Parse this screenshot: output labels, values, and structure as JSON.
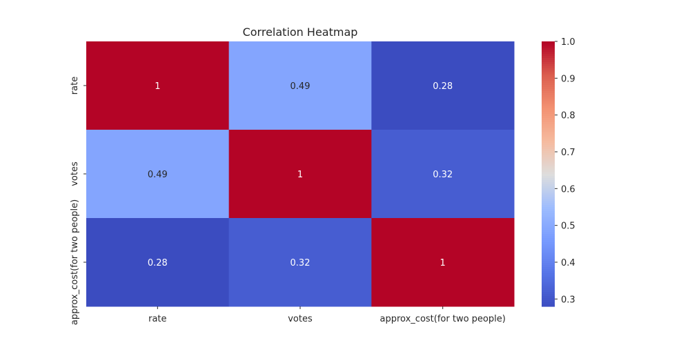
{
  "chart_data": {
    "type": "heatmap",
    "title": "Correlation Heatmap",
    "xlabel": "",
    "ylabel": "",
    "x_categories": [
      "rate",
      "votes",
      "approx_cost(for two people)"
    ],
    "y_categories": [
      "rate",
      "votes",
      "approx_cost(for two people)"
    ],
    "values": [
      [
        1,
        0.49,
        0.28
      ],
      [
        0.49,
        1,
        0.32
      ],
      [
        0.28,
        0.32,
        1
      ]
    ],
    "cell_labels": [
      [
        "1",
        "0.49",
        "0.28"
      ],
      [
        "0.49",
        "1",
        "0.32"
      ],
      [
        "0.28",
        "0.32",
        "1"
      ]
    ],
    "colormap": "coolwarm",
    "colorbar": {
      "min": 0.28,
      "max": 1.0,
      "ticks": [
        0.3,
        0.4,
        0.5,
        0.6,
        0.7,
        0.8,
        0.9,
        1.0
      ],
      "tick_labels": [
        "0.3",
        "0.4",
        "0.5",
        "0.6",
        "0.7",
        "0.8",
        "0.9",
        "1.0"
      ]
    },
    "grid": false,
    "legend": "colorbar-right"
  }
}
